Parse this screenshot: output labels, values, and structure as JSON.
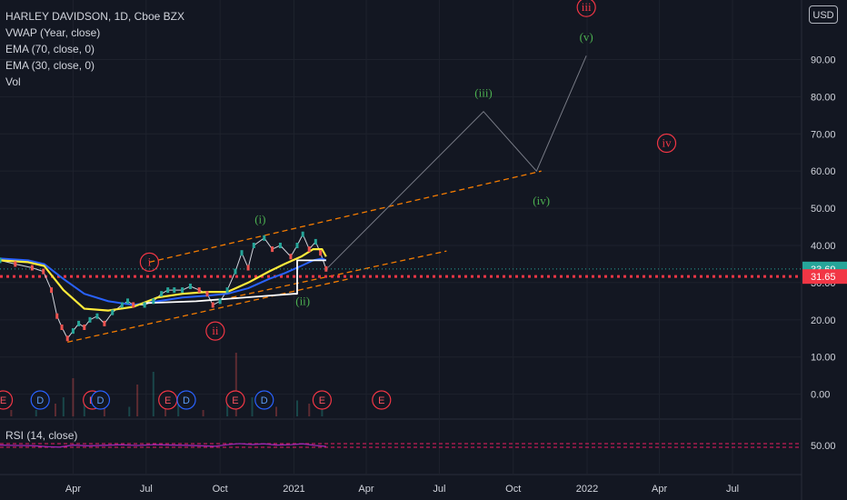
{
  "legend": {
    "title": "HARLEY DAVIDSON, 1D, Cboe BZX",
    "vwap": "VWAP (Year, close)",
    "ema70": "EMA (70, close, 0)",
    "ema30": "EMA (30, close, 0)",
    "vol": "Vol"
  },
  "rsi_legend": "RSI (14, close)",
  "currency_button": "USD",
  "colors": {
    "background": "#131722",
    "grid": "#1e222d",
    "text": "#d1d4dc",
    "price_line": "#26a69a",
    "vwap_line": "#ffffff",
    "ema70_line": "#2962ff",
    "ema30_line": "#ffeb3b",
    "channel_dash": "#f57c00",
    "wave_green": "#4caf50",
    "wave_red": "#f23645",
    "rsi_line": "#9c27b0",
    "rsi_band": "#e91e63",
    "current_price_label": "#26a69a",
    "support_label": "#f23645"
  },
  "chart_data": {
    "type": "line",
    "title": "HARLEY DAVIDSON, 1D, Cboe BZX",
    "x_axis": {
      "tick_labels": [
        "Apr",
        "Jul",
        "Oct",
        "2021",
        "Apr",
        "Jul",
        "Oct",
        "2022",
        "Apr",
        "Jul"
      ],
      "tick_dates": [
        "2020-04-01",
        "2020-07-01",
        "2020-10-01",
        "2021-01-01",
        "2021-04-01",
        "2021-07-01",
        "2021-10-01",
        "2022-01-01",
        "2022-04-01",
        "2022-07-01"
      ],
      "range": [
        "2020-01-01",
        "2022-09-25"
      ]
    },
    "y_axis": {
      "tick_labels": [
        "0.00",
        "10.00",
        "20.00",
        "30.00",
        "40.00",
        "50.00",
        "60.00",
        "70.00",
        "80.00",
        "90.00"
      ],
      "range": [
        -4,
        106
      ],
      "scale": "linear"
    },
    "price_labels": [
      {
        "label": "33.69",
        "value": 33.69,
        "style": "current price"
      },
      {
        "label": "31.65",
        "value": 31.65,
        "style": "support"
      }
    ],
    "series": [
      {
        "name": "",
        "style": "price",
        "x": [
          "2020-01-01",
          "2020-01-20",
          "2020-02-10",
          "2020-02-24",
          "2020-03-05",
          "2020-03-12",
          "2020-03-18",
          "2020-03-25",
          "2020-04-01",
          "2020-04-08",
          "2020-04-15",
          "2020-04-22",
          "2020-05-01",
          "2020-05-10",
          "2020-05-20",
          "2020-06-01",
          "2020-06-08",
          "2020-06-15",
          "2020-06-29",
          "2020-07-10",
          "2020-07-20",
          "2020-07-28",
          "2020-08-05",
          "2020-08-15",
          "2020-08-25",
          "2020-09-05",
          "2020-09-15",
          "2020-09-22",
          "2020-10-01",
          "2020-10-10",
          "2020-10-20",
          "2020-10-28",
          "2020-11-05",
          "2020-11-12",
          "2020-11-25",
          "2020-12-05",
          "2020-12-15",
          "2020-12-28",
          "2021-01-05",
          "2021-01-12",
          "2021-01-20",
          "2021-01-28",
          "2021-02-03",
          "2021-02-10"
        ],
        "values": [
          36,
          35,
          34,
          33,
          28,
          21,
          18,
          15,
          17,
          19,
          18,
          20,
          21,
          19,
          22,
          24,
          25,
          24,
          24,
          25,
          27,
          28,
          28,
          28,
          29,
          28,
          27,
          24,
          25,
          28,
          33,
          38,
          34,
          40,
          42,
          39,
          40,
          37,
          40,
          43,
          39,
          41,
          38,
          33.69
        ]
      },
      {
        "name": "",
        "style": "ema30",
        "x": [
          "2020-01-01",
          "2020-02-05",
          "2020-02-25",
          "2020-03-20",
          "2020-04-15",
          "2020-05-15",
          "2020-06-15",
          "2020-07-15",
          "2020-08-15",
          "2020-09-15",
          "2020-10-10",
          "2020-11-05",
          "2020-12-01",
          "2020-12-20",
          "2021-01-10",
          "2021-01-25",
          "2021-02-05",
          "2021-02-10"
        ],
        "values": [
          36,
          35.5,
          34.5,
          28,
          23,
          22.5,
          23.5,
          26,
          27,
          27.5,
          27.5,
          30,
          33,
          35,
          37,
          39,
          39,
          37
        ]
      },
      {
        "name": "",
        "style": "ema70",
        "x": [
          "2020-01-01",
          "2020-02-05",
          "2020-02-25",
          "2020-03-20",
          "2020-04-15",
          "2020-05-15",
          "2020-06-15",
          "2020-07-15",
          "2020-08-15",
          "2020-09-15",
          "2020-10-10",
          "2020-11-05",
          "2020-12-01",
          "2020-12-20",
          "2021-01-10",
          "2021-01-25",
          "2021-02-05",
          "2021-02-10"
        ],
        "values": [
          36.5,
          36,
          35,
          31,
          27,
          25,
          24,
          25,
          26,
          26.5,
          27,
          28.5,
          31,
          32.5,
          34.5,
          36,
          36.5,
          36
        ]
      },
      {
        "name": "",
        "style": "vwap",
        "x": [
          "2020-07-01",
          "2020-09-01",
          "2020-10-01",
          "2020-11-01",
          "2020-12-01",
          "2021-01-01",
          "2021-01-05",
          "2021-01-05",
          "2021-02-10"
        ],
        "values": [
          24.5,
          25,
          25.5,
          26,
          26.5,
          27,
          27,
          36,
          36
        ]
      }
    ],
    "channel": {
      "upper": {
        "x": [
          "2020-07-05",
          "2021-11-05"
        ],
        "values": [
          35.5,
          60
        ]
      },
      "lower": {
        "x": [
          "2020-03-25",
          "2021-03-10"
        ],
        "values": [
          14,
          31
        ]
      },
      "inner_lower": {
        "x": [
          "2020-10-15",
          "2021-07-10"
        ],
        "values": [
          26,
          38.5
        ]
      }
    },
    "projection": {
      "x": [
        "2021-02-12",
        "2021-08-25",
        "2021-10-30",
        "2021-12-31"
      ],
      "values": [
        34,
        76,
        60,
        91
      ]
    },
    "wave_labels": [
      {
        "label": "i",
        "date": "2020-07-05",
        "value": 35.5,
        "color": "red",
        "circled": true
      },
      {
        "label": "ii",
        "date": "2020-09-25",
        "value": 17,
        "color": "red",
        "circled": true
      },
      {
        "label": "iii",
        "date": "2021-12-31",
        "value": 104,
        "color": "red",
        "circled": true
      },
      {
        "label": "iv",
        "date": "2022-04-10",
        "value": 67.5,
        "color": "red",
        "circled": true
      },
      {
        "label": "(i)",
        "date": "2020-11-20",
        "value": 47,
        "color": "green",
        "circled": false
      },
      {
        "label": "(ii)",
        "date": "2021-01-12",
        "value": 25,
        "color": "green",
        "circled": false
      },
      {
        "label": "(iii)",
        "date": "2021-08-25",
        "value": 81,
        "color": "green",
        "circled": false
      },
      {
        "label": "(iv)",
        "date": "2021-11-05",
        "value": 52,
        "color": "green",
        "circled": false
      },
      {
        "label": "(v)",
        "date": "2021-12-31",
        "value": 96,
        "color": "green",
        "circled": false
      }
    ],
    "event_markers": [
      {
        "label": "E",
        "date": "2020-01-05",
        "color": "red"
      },
      {
        "label": "D",
        "date": "2020-02-20",
        "color": "blue"
      },
      {
        "label": "E",
        "date": "2020-04-25",
        "color": "red"
      },
      {
        "label": "D",
        "date": "2020-05-05",
        "color": "blue"
      },
      {
        "label": "E",
        "date": "2020-07-28",
        "color": "red"
      },
      {
        "label": "D",
        "date": "2020-08-20",
        "color": "blue"
      },
      {
        "label": "E",
        "date": "2020-10-20",
        "color": "red"
      },
      {
        "label": "D",
        "date": "2020-11-25",
        "color": "blue"
      },
      {
        "label": "E",
        "date": "2021-02-05",
        "color": "red"
      },
      {
        "label": "E",
        "date": "2021-04-20",
        "color": "red"
      }
    ],
    "volume": {
      "x": [
        "2020-01-15",
        "2020-02-15",
        "2020-03-10",
        "2020-03-20",
        "2020-04-01",
        "2020-04-15",
        "2020-05-10",
        "2020-06-10",
        "2020-06-20",
        "2020-07-10",
        "2020-07-25",
        "2020-08-10",
        "2020-09-10",
        "2020-10-10",
        "2020-10-21",
        "2020-11-10",
        "2020-12-10",
        "2021-01-05",
        "2021-01-20",
        "2021-02-05"
      ],
      "values": [
        1,
        1,
        2,
        3,
        6,
        2,
        2,
        1.5,
        5,
        7,
        3,
        2,
        1,
        2,
        10,
        3,
        1.5,
        2.5,
        2,
        4
      ]
    },
    "rsi": {
      "name": "RSI (14, close)",
      "tick_labels": [
        "50.00"
      ],
      "x": [
        "2020-01-01",
        "2020-01-20",
        "2020-02-10",
        "2020-03-01",
        "2020-03-15",
        "2020-04-01",
        "2020-04-20",
        "2020-05-10",
        "2020-05-30",
        "2020-06-20",
        "2020-07-10",
        "2020-08-01",
        "2020-08-20",
        "2020-09-10",
        "2020-09-25",
        "2020-10-10",
        "2020-10-25",
        "2020-11-10",
        "2020-11-25",
        "2020-12-10",
        "2020-12-28",
        "2021-01-12",
        "2021-01-28",
        "2021-02-10"
      ],
      "values": [
        55,
        50,
        48,
        35,
        30,
        55,
        45,
        52,
        58,
        50,
        60,
        55,
        52,
        45,
        40,
        60,
        72,
        62,
        70,
        55,
        60,
        70,
        50,
        38
      ],
      "bands": [
        54,
        46
      ]
    }
  }
}
